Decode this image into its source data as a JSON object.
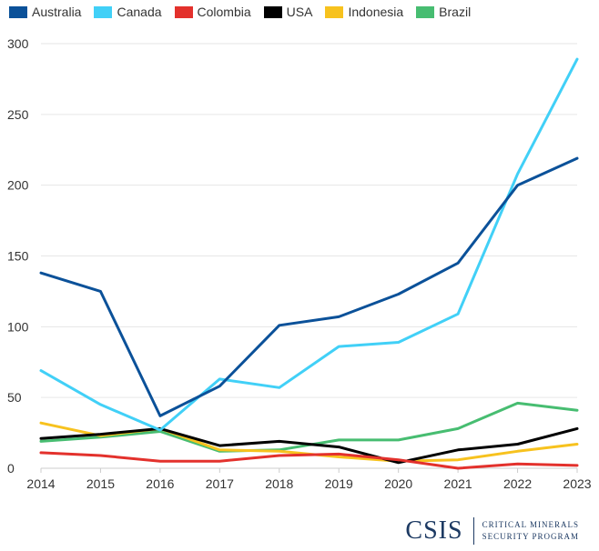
{
  "chart_data": {
    "type": "line",
    "x": [
      2014,
      2015,
      2016,
      2017,
      2018,
      2019,
      2020,
      2021,
      2022,
      2023
    ],
    "ylim": [
      0,
      300
    ],
    "yticks": [
      0,
      50,
      100,
      150,
      200,
      250,
      300
    ],
    "grid": true,
    "legend_position": "top-left",
    "series": [
      {
        "name": "Australia",
        "color": "#0b5199",
        "values": [
          138,
          125,
          37,
          58,
          101,
          107,
          123,
          145,
          200,
          219
        ]
      },
      {
        "name": "Canada",
        "color": "#41d0f7",
        "values": [
          69,
          45,
          27,
          63,
          57,
          86,
          89,
          109,
          208,
          289
        ]
      },
      {
        "name": "Colombia",
        "color": "#e3312c",
        "values": [
          11,
          9,
          5,
          5,
          9,
          10,
          6,
          0,
          3,
          2
        ]
      },
      {
        "name": "USA",
        "color": "#000000",
        "values": [
          21,
          24,
          28,
          16,
          19,
          15,
          4,
          13,
          17,
          28
        ]
      },
      {
        "name": "Indonesia",
        "color": "#f7c21e",
        "values": [
          32,
          23,
          28,
          13,
          12,
          8,
          5,
          6,
          12,
          17
        ]
      },
      {
        "name": "Brazil",
        "color": "#47bd71",
        "values": [
          19,
          22,
          26,
          12,
          13,
          20,
          20,
          28,
          46,
          41
        ]
      }
    ]
  },
  "branding": {
    "wordmark": "CSIS",
    "subtitle_line1": "CRITICAL MINERALS",
    "subtitle_line2": "SECURITY PROGRAM"
  }
}
